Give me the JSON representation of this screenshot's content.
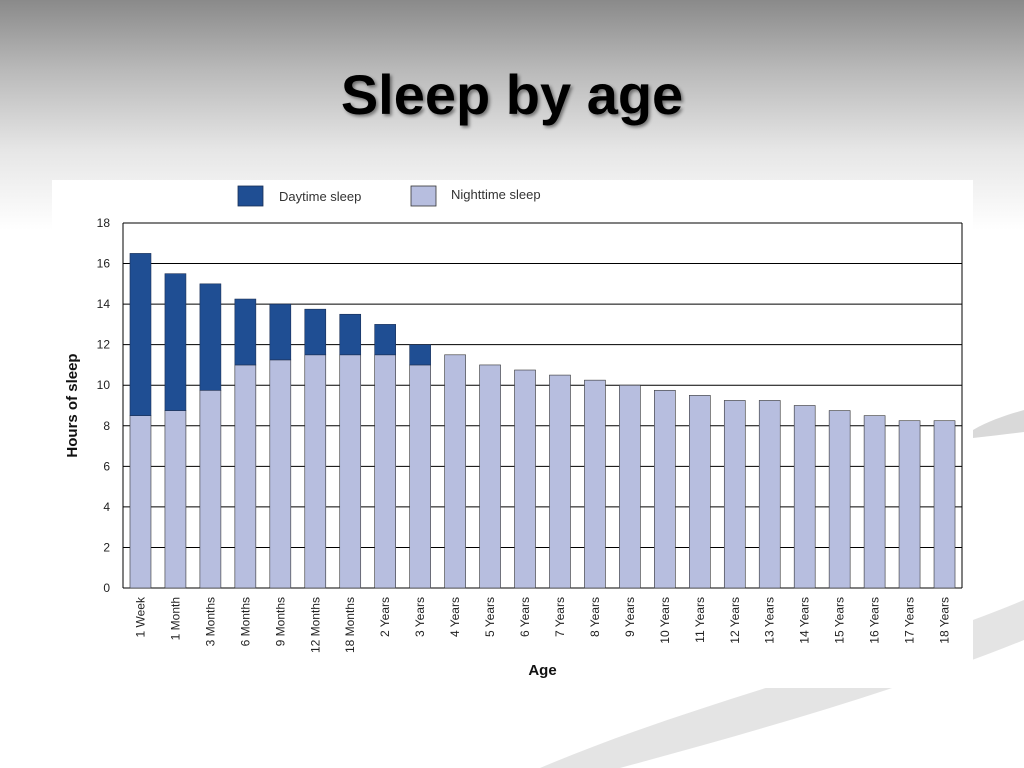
{
  "slide": {
    "title": "Sleep by age"
  },
  "colors": {
    "daytime": "#1f4e93",
    "nighttime": "#b7bedf",
    "gridline": "#000000",
    "axis": "#000000"
  },
  "chart_data": {
    "type": "bar",
    "stacked": true,
    "title": "",
    "xlabel": "Age",
    "ylabel": "Hours of sleep",
    "ylim": [
      0,
      18
    ],
    "yticks": [
      0,
      2,
      4,
      6,
      8,
      10,
      12,
      14,
      16,
      18
    ],
    "grid": true,
    "legend_position": "top-left",
    "categories": [
      "1 Week",
      "1 Month",
      "3 Months",
      "6 Months",
      "9 Months",
      "12 Months",
      "18 Months",
      "2 Years",
      "3 Years",
      "4 Years",
      "5 Years",
      "6 Years",
      "7 Years",
      "8 Years",
      "9 Years",
      "10 Years",
      "11 Years",
      "12 Years",
      "13 Years",
      "14 Years",
      "15 Years",
      "16 Years",
      "17 Years",
      "18 Years"
    ],
    "series": [
      {
        "name": "Nighttime sleep",
        "values": [
          8.5,
          8.75,
          9.75,
          11,
          11.25,
          11.5,
          11.5,
          11.5,
          11,
          11.5,
          11,
          10.75,
          10.5,
          10.25,
          10,
          9.75,
          9.5,
          9.25,
          9.25,
          9,
          8.75,
          8.5,
          8.25,
          8.25
        ]
      },
      {
        "name": "Daytime sleep",
        "values": [
          8,
          6.75,
          5.25,
          3.25,
          2.75,
          2.25,
          2,
          1.5,
          1,
          0,
          0,
          0,
          0,
          0,
          0,
          0,
          0,
          0,
          0,
          0,
          0,
          0,
          0,
          0
        ]
      }
    ],
    "legend": [
      "Daytime sleep",
      "Nighttime sleep"
    ]
  }
}
